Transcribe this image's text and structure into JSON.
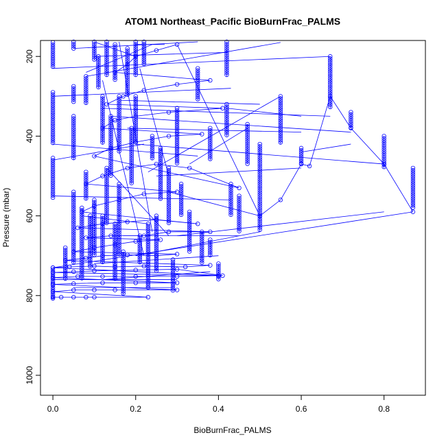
{
  "chart_data": {
    "type": "scatter",
    "title": "ATOM1 Northeast_Pacific BioBurnFrac_PALMS",
    "xlabel": "BioBurnFrac_PALMS",
    "ylabel": "Pressure (mbar)",
    "xlim": [
      -0.03,
      0.9
    ],
    "ylim": [
      1050,
      160
    ],
    "y_reversed": true,
    "x_ticks": [
      0.0,
      0.2,
      0.4,
      0.6,
      0.8
    ],
    "x_tick_labels": [
      "0.0",
      "0.2",
      "0.4",
      "0.6",
      "0.8"
    ],
    "y_ticks": [
      200,
      400,
      600,
      800,
      1000
    ],
    "y_tick_labels": [
      "200",
      "400",
      "600",
      "800",
      "1000"
    ],
    "grid": false,
    "legend": "none",
    "marker": "open-circle",
    "connected": true,
    "series_color": "#0000ff",
    "series": [
      {
        "points": [
          [
            0.0,
            804
          ],
          [
            0.02,
            804
          ],
          [
            0.05,
            804
          ],
          [
            0.08,
            804
          ],
          [
            0.1,
            804
          ],
          [
            0.23,
            804
          ],
          [
            0.0,
            790
          ],
          [
            0.05,
            786
          ],
          [
            0.1,
            786
          ],
          [
            0.15,
            786
          ],
          [
            0.3,
            786
          ],
          [
            0.0,
            772
          ],
          [
            0.05,
            770
          ],
          [
            0.12,
            768
          ],
          [
            0.2,
            768
          ],
          [
            0.3,
            768
          ],
          [
            0.0,
            755
          ],
          [
            0.06,
            752
          ],
          [
            0.12,
            752
          ],
          [
            0.2,
            752
          ],
          [
            0.3,
            752
          ],
          [
            0.4,
            750
          ],
          [
            0.0,
            742
          ],
          [
            0.05,
            740
          ],
          [
            0.1,
            738
          ],
          [
            0.2,
            736
          ],
          [
            0.3,
            734
          ],
          [
            0.41,
            750
          ],
          [
            0.0,
            730
          ],
          [
            0.04,
            728
          ],
          [
            0.1,
            726
          ],
          [
            0.15,
            728
          ],
          [
            0.22,
            726
          ],
          [
            0.32,
            728
          ],
          [
            0.38,
            724
          ],
          [
            0.03,
            712
          ],
          [
            0.08,
            706
          ],
          [
            0.12,
            700
          ],
          [
            0.18,
            698
          ],
          [
            0.25,
            700
          ],
          [
            0.3,
            696
          ],
          [
            0.05,
            690
          ],
          [
            0.1,
            680
          ],
          [
            0.15,
            672
          ],
          [
            0.2,
            664
          ],
          [
            0.26,
            660
          ],
          [
            0.08,
            655
          ],
          [
            0.14,
            650
          ],
          [
            0.22,
            650
          ],
          [
            0.28,
            640
          ],
          [
            0.38,
            640
          ],
          [
            0.06,
            630
          ],
          [
            0.12,
            620
          ],
          [
            0.18,
            615
          ],
          [
            0.25,
            610
          ],
          [
            0.35,
            620
          ],
          [
            0.07,
            590
          ],
          [
            0.1,
            575
          ],
          [
            0.16,
            560
          ],
          [
            0.22,
            545
          ],
          [
            0.3,
            540
          ],
          [
            0.08,
            520
          ],
          [
            0.12,
            500
          ],
          [
            0.18,
            480
          ],
          [
            0.25,
            470
          ],
          [
            0.33,
            480
          ],
          [
            0.45,
            530
          ],
          [
            0.1,
            450
          ],
          [
            0.14,
            430
          ],
          [
            0.2,
            415
          ],
          [
            0.28,
            400
          ],
          [
            0.36,
            395
          ],
          [
            0.12,
            380
          ],
          [
            0.15,
            360
          ],
          [
            0.2,
            350
          ],
          [
            0.28,
            340
          ],
          [
            0.41,
            330
          ],
          [
            0.13,
            320
          ],
          [
            0.17,
            300
          ],
          [
            0.22,
            285
          ],
          [
            0.3,
            270
          ],
          [
            0.38,
            260
          ],
          [
            0.15,
            240
          ],
          [
            0.18,
            220
          ],
          [
            0.2,
            200
          ],
          [
            0.25,
            185
          ],
          [
            0.3,
            170
          ],
          [
            0.5,
            600
          ],
          [
            0.55,
            560
          ],
          [
            0.6,
            470
          ],
          [
            0.62,
            475
          ],
          [
            0.67,
            300
          ],
          [
            0.72,
            380
          ],
          [
            0.8,
            470
          ],
          [
            0.87,
            590
          ]
        ]
      }
    ],
    "columns": [
      {
        "x": 0.0,
        "y0": 165,
        "y1": 230
      },
      {
        "x": 0.0,
        "y0": 290,
        "y1": 420
      },
      {
        "x": 0.0,
        "y0": 455,
        "y1": 555
      },
      {
        "x": 0.0,
        "y0": 730,
        "y1": 810
      },
      {
        "x": 0.03,
        "y0": 680,
        "y1": 760
      },
      {
        "x": 0.05,
        "y0": 150,
        "y1": 180
      },
      {
        "x": 0.05,
        "y0": 275,
        "y1": 315
      },
      {
        "x": 0.05,
        "y0": 350,
        "y1": 460
      },
      {
        "x": 0.05,
        "y0": 540,
        "y1": 720
      },
      {
        "x": 0.07,
        "y0": 580,
        "y1": 760
      },
      {
        "x": 0.08,
        "y0": 250,
        "y1": 320
      },
      {
        "x": 0.08,
        "y0": 490,
        "y1": 560
      },
      {
        "x": 0.09,
        "y0": 600,
        "y1": 730
      },
      {
        "x": 0.1,
        "y0": 150,
        "y1": 210
      },
      {
        "x": 0.1,
        "y0": 560,
        "y1": 700
      },
      {
        "x": 0.11,
        "y0": 200,
        "y1": 280
      },
      {
        "x": 0.12,
        "y0": 300,
        "y1": 420
      },
      {
        "x": 0.12,
        "y0": 600,
        "y1": 720
      },
      {
        "x": 0.13,
        "y0": 160,
        "y1": 250
      },
      {
        "x": 0.13,
        "y0": 480,
        "y1": 620
      },
      {
        "x": 0.14,
        "y0": 350,
        "y1": 500
      },
      {
        "x": 0.15,
        "y0": 170,
        "y1": 260
      },
      {
        "x": 0.15,
        "y0": 620,
        "y1": 760
      },
      {
        "x": 0.16,
        "y0": 300,
        "y1": 440
      },
      {
        "x": 0.16,
        "y0": 520,
        "y1": 700
      },
      {
        "x": 0.17,
        "y0": 690,
        "y1": 800
      },
      {
        "x": 0.18,
        "y0": 180,
        "y1": 300
      },
      {
        "x": 0.19,
        "y0": 380,
        "y1": 520
      },
      {
        "x": 0.2,
        "y0": 160,
        "y1": 250
      },
      {
        "x": 0.2,
        "y0": 300,
        "y1": 420
      },
      {
        "x": 0.21,
        "y0": 650,
        "y1": 720
      },
      {
        "x": 0.22,
        "y0": 160,
        "y1": 220
      },
      {
        "x": 0.23,
        "y0": 620,
        "y1": 780
      },
      {
        "x": 0.24,
        "y0": 400,
        "y1": 460
      },
      {
        "x": 0.25,
        "y0": 600,
        "y1": 740
      },
      {
        "x": 0.26,
        "y0": 430,
        "y1": 560
      },
      {
        "x": 0.28,
        "y0": 480,
        "y1": 620
      },
      {
        "x": 0.29,
        "y0": 710,
        "y1": 790
      },
      {
        "x": 0.3,
        "y0": 330,
        "y1": 470
      },
      {
        "x": 0.31,
        "y0": 520,
        "y1": 600
      },
      {
        "x": 0.33,
        "y0": 590,
        "y1": 690
      },
      {
        "x": 0.35,
        "y0": 230,
        "y1": 310
      },
      {
        "x": 0.36,
        "y0": 640,
        "y1": 720
      },
      {
        "x": 0.38,
        "y0": 380,
        "y1": 460
      },
      {
        "x": 0.38,
        "y0": 660,
        "y1": 700
      },
      {
        "x": 0.4,
        "y0": 720,
        "y1": 760
      },
      {
        "x": 0.42,
        "y0": 160,
        "y1": 250
      },
      {
        "x": 0.42,
        "y0": 320,
        "y1": 400
      },
      {
        "x": 0.43,
        "y0": 520,
        "y1": 600
      },
      {
        "x": 0.45,
        "y0": 550,
        "y1": 640
      },
      {
        "x": 0.47,
        "y0": 370,
        "y1": 470
      },
      {
        "x": 0.5,
        "y0": 420,
        "y1": 640
      },
      {
        "x": 0.55,
        "y0": 300,
        "y1": 420
      },
      {
        "x": 0.6,
        "y0": 430,
        "y1": 470
      },
      {
        "x": 0.67,
        "y0": 200,
        "y1": 330
      },
      {
        "x": 0.72,
        "y0": 340,
        "y1": 380
      },
      {
        "x": 0.8,
        "y0": 400,
        "y1": 480
      },
      {
        "x": 0.87,
        "y0": 480,
        "y1": 580
      }
    ],
    "connectors": [
      [
        [
          0.0,
          230
        ],
        [
          0.67,
          200
        ]
      ],
      [
        [
          0.0,
          300
        ],
        [
          0.43,
          280
        ]
      ],
      [
        [
          0.0,
          420
        ],
        [
          0.35,
          450
        ]
      ],
      [
        [
          0.0,
          460
        ],
        [
          0.22,
          420
        ]
      ],
      [
        [
          0.0,
          550
        ],
        [
          0.43,
          560
        ]
      ],
      [
        [
          0.0,
          730
        ],
        [
          0.87,
          590
        ]
      ],
      [
        [
          0.05,
          180
        ],
        [
          0.35,
          160
        ]
      ],
      [
        [
          0.08,
          250
        ],
        [
          0.55,
          165
        ]
      ],
      [
        [
          0.1,
          200
        ],
        [
          0.42,
          190
        ]
      ],
      [
        [
          0.12,
          330
        ],
        [
          0.67,
          350
        ]
      ],
      [
        [
          0.14,
          350
        ],
        [
          0.72,
          390
        ]
      ],
      [
        [
          0.16,
          310
        ],
        [
          0.5,
          320
        ]
      ],
      [
        [
          0.18,
          380
        ],
        [
          0.6,
          390
        ]
      ],
      [
        [
          0.2,
          420
        ],
        [
          0.8,
          470
        ]
      ],
      [
        [
          0.23,
          490
        ],
        [
          0.55,
          300
        ]
      ],
      [
        [
          0.25,
          500
        ],
        [
          0.6,
          480
        ]
      ],
      [
        [
          0.28,
          540
        ],
        [
          0.5,
          600
        ]
      ],
      [
        [
          0.3,
          650
        ],
        [
          0.8,
          590
        ]
      ],
      [
        [
          0.13,
          480
        ],
        [
          0.28,
          650
        ]
      ],
      [
        [
          0.07,
          600
        ],
        [
          0.23,
          620
        ]
      ],
      [
        [
          0.17,
          650
        ],
        [
          0.45,
          650
        ]
      ],
      [
        [
          0.2,
          700
        ],
        [
          0.5,
          640
        ]
      ],
      [
        [
          0.1,
          720
        ],
        [
          0.4,
          700
        ]
      ],
      [
        [
          0.05,
          780
        ],
        [
          0.29,
          780
        ]
      ],
      [
        [
          0.12,
          760
        ],
        [
          0.38,
          740
        ]
      ],
      [
        [
          0.0,
          760
        ],
        [
          0.3,
          760
        ]
      ],
      [
        [
          0.2,
          200
        ],
        [
          0.1,
          160
        ]
      ],
      [
        [
          0.16,
          160
        ],
        [
          0.24,
          640
        ]
      ],
      [
        [
          0.12,
          260
        ],
        [
          0.22,
          700
        ]
      ],
      [
        [
          0.2,
          170
        ],
        [
          0.27,
          170
        ]
      ],
      [
        [
          0.33,
          470
        ],
        [
          0.47,
          380
        ]
      ],
      [
        [
          0.42,
          330
        ],
        [
          0.6,
          350
        ]
      ],
      [
        [
          0.6,
          440
        ],
        [
          0.72,
          420
        ]
      ],
      [
        [
          0.21,
          230
        ],
        [
          0.28,
          500
        ]
      ],
      [
        [
          0.24,
          170
        ],
        [
          0.08,
          240
        ]
      ]
    ]
  }
}
